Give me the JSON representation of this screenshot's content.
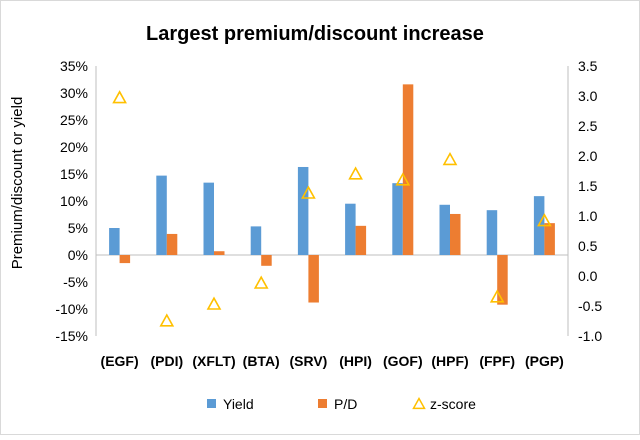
{
  "chart_data": {
    "type": "bar",
    "title": "Largest premium/discount increase",
    "ylabel": "Premium/discount or yield",
    "categories": [
      "(EGF)",
      "(PDI)",
      "(XFLT)",
      "(BTA)",
      "(SRV)",
      "(HPI)",
      "(GOF)",
      "(HPF)",
      "(FPF)",
      "(PGP)"
    ],
    "series": [
      {
        "name": "Yield",
        "axis": "left",
        "kind": "bar",
        "color": "#5B9BD5",
        "values": [
          5.0,
          14.7,
          13.4,
          5.3,
          16.3,
          9.5,
          13.3,
          9.3,
          8.3,
          10.9
        ]
      },
      {
        "name": "P/D",
        "axis": "left",
        "kind": "bar",
        "color": "#ED7D31",
        "values": [
          -1.5,
          3.9,
          0.7,
          -2.0,
          -8.8,
          5.4,
          31.6,
          7.6,
          -9.2,
          5.9
        ]
      },
      {
        "name": "z-score",
        "axis": "right",
        "kind": "marker",
        "marker": "triangle-open",
        "color": "#FFC000",
        "values": [
          2.97,
          -0.75,
          -0.47,
          -0.12,
          1.38,
          1.7,
          1.6,
          1.94,
          -0.35,
          0.92
        ]
      }
    ],
    "left_axis": {
      "ylim": [
        -15,
        35
      ],
      "ticks": [
        35,
        30,
        25,
        20,
        15,
        10,
        5,
        0,
        -5,
        -10,
        -15
      ],
      "tick_labels": [
        "35%",
        "30%",
        "25%",
        "20%",
        "15%",
        "10%",
        "5%",
        "0%",
        "-5%",
        "-10%",
        "-15%"
      ]
    },
    "right_axis": {
      "ylim": [
        -1.0,
        3.5
      ],
      "ticks": [
        3.5,
        3.0,
        2.5,
        2.0,
        1.5,
        1.0,
        0.5,
        0.0,
        -0.5,
        -1.0
      ],
      "tick_labels": [
        "3.5",
        "3.0",
        "2.5",
        "2.0",
        "1.5",
        "1.0",
        "0.5",
        "0.0",
        "-0.5",
        "-1.0"
      ]
    },
    "grid": false,
    "legend_position": "bottom"
  }
}
